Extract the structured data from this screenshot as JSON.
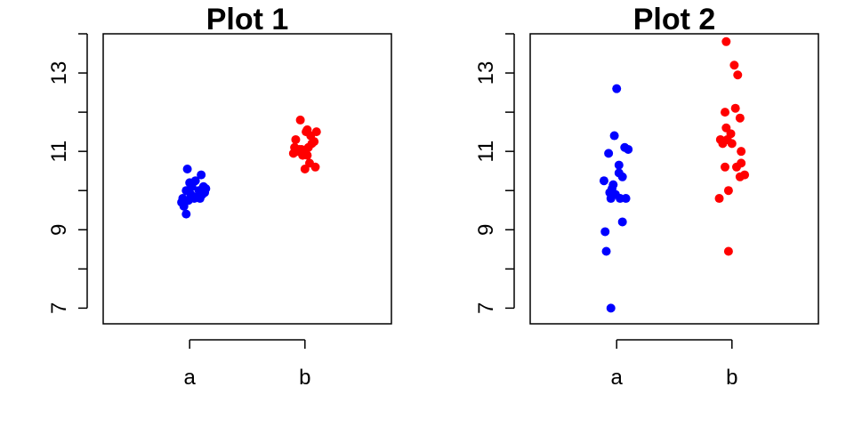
{
  "chart_data": [
    {
      "type": "scatter",
      "title": "Plot 1",
      "xlabel": "",
      "ylabel": "",
      "categories": [
        "a",
        "b"
      ],
      "y_ticks": [
        7,
        9,
        11,
        13
      ],
      "ylim": [
        6.6,
        14.0
      ],
      "grid": false,
      "series": [
        {
          "category": "a",
          "color": "#0000FF",
          "points": [
            {
              "x": 0.93,
              "y": 9.7
            },
            {
              "x": 0.94,
              "y": 9.8
            },
            {
              "x": 0.95,
              "y": 9.6
            },
            {
              "x": 0.97,
              "y": 10.0
            },
            {
              "x": 0.98,
              "y": 10.55
            },
            {
              "x": 0.97,
              "y": 9.4
            },
            {
              "x": 0.99,
              "y": 9.75
            },
            {
              "x": 1.0,
              "y": 10.2
            },
            {
              "x": 1.01,
              "y": 9.9
            },
            {
              "x": 1.02,
              "y": 10.1
            },
            {
              "x": 1.04,
              "y": 9.8
            },
            {
              "x": 1.05,
              "y": 10.25
            },
            {
              "x": 1.07,
              "y": 9.85
            },
            {
              "x": 1.08,
              "y": 10.0
            },
            {
              "x": 1.09,
              "y": 9.8
            },
            {
              "x": 1.1,
              "y": 10.4
            },
            {
              "x": 1.11,
              "y": 9.9
            },
            {
              "x": 1.12,
              "y": 10.1
            },
            {
              "x": 1.13,
              "y": 9.95
            },
            {
              "x": 1.14,
              "y": 10.05
            }
          ]
        },
        {
          "category": "b",
          "color": "#FF0000",
          "points": [
            {
              "x": 1.9,
              "y": 10.95
            },
            {
              "x": 1.91,
              "y": 11.1
            },
            {
              "x": 1.92,
              "y": 11.3
            },
            {
              "x": 1.94,
              "y": 11.0
            },
            {
              "x": 1.96,
              "y": 11.8
            },
            {
              "x": 1.97,
              "y": 11.05
            },
            {
              "x": 1.98,
              "y": 10.9
            },
            {
              "x": 2.0,
              "y": 11.0
            },
            {
              "x": 2.0,
              "y": 10.55
            },
            {
              "x": 2.01,
              "y": 11.5
            },
            {
              "x": 2.02,
              "y": 10.9
            },
            {
              "x": 2.03,
              "y": 11.1
            },
            {
              "x": 2.04,
              "y": 10.7
            },
            {
              "x": 2.05,
              "y": 11.4
            },
            {
              "x": 2.06,
              "y": 11.2
            },
            {
              "x": 2.08,
              "y": 11.25
            },
            {
              "x": 2.09,
              "y": 10.6
            },
            {
              "x": 2.1,
              "y": 11.5
            },
            {
              "x": 2.02,
              "y": 11.55
            },
            {
              "x": 1.95,
              "y": 11.05
            }
          ]
        }
      ]
    },
    {
      "type": "scatter",
      "title": "Plot 2",
      "xlabel": "",
      "ylabel": "",
      "categories": [
        "a",
        "b"
      ],
      "y_ticks": [
        7,
        9,
        11,
        13
      ],
      "ylim": [
        6.6,
        14.0
      ],
      "grid": false,
      "series": [
        {
          "category": "a",
          "color": "#0000FF",
          "points": [
            {
              "x": 0.89,
              "y": 10.25
            },
            {
              "x": 0.9,
              "y": 8.95
            },
            {
              "x": 0.91,
              "y": 8.45
            },
            {
              "x": 0.93,
              "y": 10.95
            },
            {
              "x": 0.94,
              "y": 9.95
            },
            {
              "x": 0.95,
              "y": 9.8
            },
            {
              "x": 0.95,
              "y": 7.0
            },
            {
              "x": 0.96,
              "y": 10.05
            },
            {
              "x": 0.97,
              "y": 10.15
            },
            {
              "x": 0.98,
              "y": 11.4
            },
            {
              "x": 0.99,
              "y": 9.9
            },
            {
              "x": 1.0,
              "y": 12.6
            },
            {
              "x": 1.02,
              "y": 10.45
            },
            {
              "x": 1.02,
              "y": 10.65
            },
            {
              "x": 1.03,
              "y": 9.8
            },
            {
              "x": 1.05,
              "y": 9.2
            },
            {
              "x": 1.05,
              "y": 10.35
            },
            {
              "x": 1.07,
              "y": 11.1
            },
            {
              "x": 1.08,
              "y": 9.8
            },
            {
              "x": 1.1,
              "y": 11.05
            }
          ]
        },
        {
          "category": "b",
          "color": "#FF0000",
          "points": [
            {
              "x": 1.89,
              "y": 9.8
            },
            {
              "x": 1.9,
              "y": 11.3
            },
            {
              "x": 1.92,
              "y": 11.2
            },
            {
              "x": 1.94,
              "y": 10.6
            },
            {
              "x": 1.94,
              "y": 12.0
            },
            {
              "x": 1.95,
              "y": 11.6
            },
            {
              "x": 1.95,
              "y": 13.8
            },
            {
              "x": 1.96,
              "y": 11.3
            },
            {
              "x": 1.97,
              "y": 10.0
            },
            {
              "x": 1.97,
              "y": 8.45
            },
            {
              "x": 1.99,
              "y": 11.45
            },
            {
              "x": 2.0,
              "y": 11.2
            },
            {
              "x": 2.02,
              "y": 13.2
            },
            {
              "x": 2.03,
              "y": 12.1
            },
            {
              "x": 2.04,
              "y": 10.6
            },
            {
              "x": 2.05,
              "y": 12.95
            },
            {
              "x": 2.07,
              "y": 10.35
            },
            {
              "x": 2.07,
              "y": 11.85
            },
            {
              "x": 2.08,
              "y": 10.7
            },
            {
              "x": 2.08,
              "y": 11.0
            },
            {
              "x": 2.11,
              "y": 10.4
            }
          ]
        }
      ]
    }
  ]
}
